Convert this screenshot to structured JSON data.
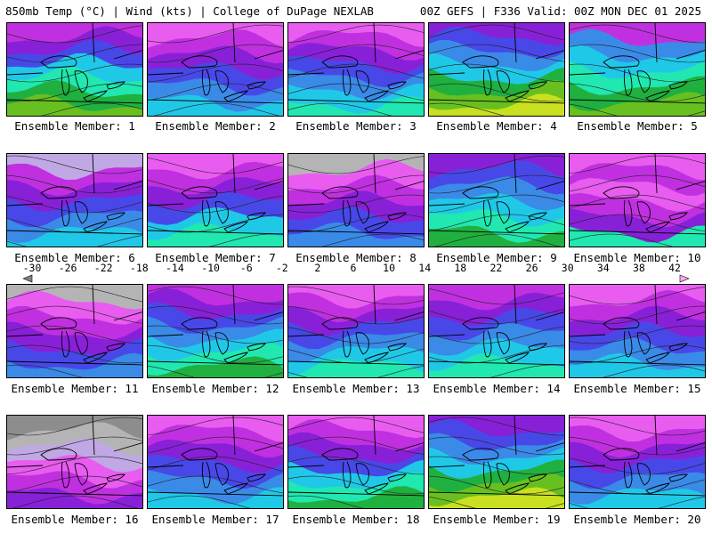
{
  "header": {
    "left": "850mb Temp (°C) | Wind (kts) | College of DuPage NEXLAB",
    "right": "00Z GEFS | F336 Valid: 00Z MON DEC 01 2025"
  },
  "colorbar": {
    "labels": [
      "-30",
      "-26",
      "-22",
      "-18",
      "-14",
      "-10",
      "-6",
      "-2",
      "2",
      "6",
      "10",
      "14",
      "18",
      "22",
      "26",
      "30",
      "34",
      "38",
      "42"
    ],
    "colors": [
      "#838383",
      "#a2a2a2",
      "#8d8d8d",
      "#b4b4b4",
      "#c0a8e4",
      "#e85cf0",
      "#c030e0",
      "#8820d8",
      "#4848e8",
      "#3a8ae8",
      "#20c8e8",
      "#20e8b0",
      "#20b040",
      "#68c020",
      "#c8e020",
      "#f0f000",
      "#f0c020",
      "#f0a030",
      "#f07020",
      "#f04020",
      "#e02020",
      "#c01010",
      "#a00030",
      "#d040a0",
      "#e060d0",
      "#f080f0",
      "#f8a8f8"
    ]
  },
  "members": [
    {
      "caption": "Ensemble Member: 1",
      "bands": [
        "#c030e0",
        "#8820d8",
        "#4848e8",
        "#20c8e8",
        "#20e8b0",
        "#20b040",
        "#68c020"
      ]
    },
    {
      "caption": "Ensemble Member: 2",
      "bands": [
        "#e85cf0",
        "#c030e0",
        "#8820d8",
        "#4848e8",
        "#3a8ae8",
        "#20c8e8"
      ]
    },
    {
      "caption": "Ensemble Member: 3",
      "bands": [
        "#e85cf0",
        "#c030e0",
        "#8820d8",
        "#4848e8",
        "#3a8ae8",
        "#20c8e8",
        "#20e8b0"
      ]
    },
    {
      "caption": "Ensemble Member: 4",
      "bands": [
        "#8820d8",
        "#4848e8",
        "#3a8ae8",
        "#20c8e8",
        "#20b040",
        "#68c020",
        "#c8e020"
      ]
    },
    {
      "caption": "Ensemble Member: 5",
      "bands": [
        "#c030e0",
        "#3a8ae8",
        "#20c8e8",
        "#20e8b0",
        "#20b040",
        "#68c020"
      ]
    },
    {
      "caption": "Ensemble Member: 6",
      "bands": [
        "#c0a8e4",
        "#c030e0",
        "#8820d8",
        "#4848e8",
        "#3a8ae8",
        "#20c8e8"
      ]
    },
    {
      "caption": "Ensemble Member: 7",
      "bands": [
        "#e85cf0",
        "#c030e0",
        "#8820d8",
        "#4848e8",
        "#20c8e8",
        "#20e8b0"
      ]
    },
    {
      "caption": "Ensemble Member: 8",
      "bands": [
        "#b4b4b4",
        "#e85cf0",
        "#c030e0",
        "#8820d8",
        "#4848e8",
        "#3a8ae8"
      ]
    },
    {
      "caption": "Ensemble Member: 9",
      "bands": [
        "#8820d8",
        "#4848e8",
        "#3a8ae8",
        "#20c8e8",
        "#20e8b0",
        "#20b040"
      ]
    },
    {
      "caption": "Ensemble Member: 10",
      "bands": [
        "#e85cf0",
        "#c030e0",
        "#e85cf0",
        "#c030e0",
        "#8820d8",
        "#20e8b0"
      ]
    },
    {
      "caption": "Ensemble Member: 11",
      "bands": [
        "#b4b4b4",
        "#e85cf0",
        "#c030e0",
        "#8820d8",
        "#4848e8",
        "#3a8ae8"
      ]
    },
    {
      "caption": "Ensemble Member: 12",
      "bands": [
        "#c030e0",
        "#8820d8",
        "#4848e8",
        "#3a8ae8",
        "#20c8e8",
        "#20e8b0",
        "#20b040"
      ]
    },
    {
      "caption": "Ensemble Member: 13",
      "bands": [
        "#e85cf0",
        "#c030e0",
        "#8820d8",
        "#4848e8",
        "#3a8ae8",
        "#20c8e8",
        "#20e8b0"
      ]
    },
    {
      "caption": "Ensemble Member: 14",
      "bands": [
        "#c030e0",
        "#8820d8",
        "#4848e8",
        "#3a8ae8",
        "#20c8e8",
        "#20e8b0"
      ]
    },
    {
      "caption": "Ensemble Member: 15",
      "bands": [
        "#e85cf0",
        "#c030e0",
        "#8820d8",
        "#4848e8",
        "#3a8ae8",
        "#20c8e8"
      ]
    },
    {
      "caption": "Ensemble Member: 16",
      "bands": [
        "#8d8d8d",
        "#b4b4b4",
        "#c0a8e4",
        "#e85cf0",
        "#c030e0",
        "#8820d8"
      ]
    },
    {
      "caption": "Ensemble Member: 17",
      "bands": [
        "#e85cf0",
        "#c030e0",
        "#8820d8",
        "#4848e8",
        "#3a8ae8",
        "#20c8e8"
      ]
    },
    {
      "caption": "Ensemble Member: 18",
      "bands": [
        "#e85cf0",
        "#c030e0",
        "#8820d8",
        "#4848e8",
        "#20c8e8",
        "#20e8b0",
        "#20b040"
      ]
    },
    {
      "caption": "Ensemble Member: 19",
      "bands": [
        "#8820d8",
        "#4848e8",
        "#3a8ae8",
        "#20c8e8",
        "#20b040",
        "#68c020",
        "#c8e020"
      ]
    },
    {
      "caption": "Ensemble Member: 20",
      "bands": [
        "#e85cf0",
        "#c030e0",
        "#8820d8",
        "#4848e8",
        "#3a8ae8",
        "#20c8e8"
      ]
    }
  ]
}
